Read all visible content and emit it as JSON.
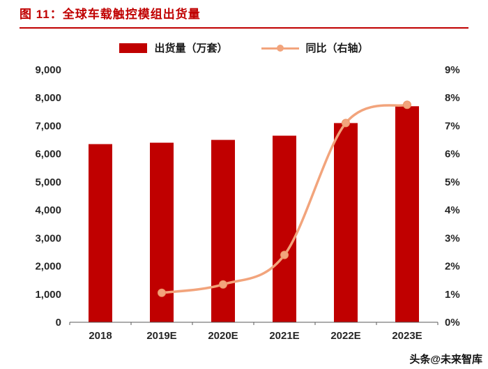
{
  "header": {
    "figure_label": "图 11："
  },
  "watermark": "头条@未来智库",
  "palette": {
    "bar": "#C00000",
    "line": "#F2A47C",
    "title": "#C00000",
    "axis_text": "#262626",
    "axis_line": "#595959"
  },
  "chart_data": {
    "type": "bar",
    "subtype": "bar+line-combo",
    "title": "全球车载触控模组出货量",
    "categories": [
      "2018",
      "2019E",
      "2020E",
      "2021E",
      "2022E",
      "2023E"
    ],
    "series": [
      {
        "name": "出货量（万套）",
        "type": "bar",
        "axis": "left",
        "color": "#C00000",
        "values": [
          6350,
          6400,
          6500,
          6650,
          7100,
          7700
        ]
      },
      {
        "name": "同比（右轴）",
        "type": "line",
        "axis": "right",
        "color": "#F2A47C",
        "values": [
          null,
          1.05,
          1.35,
          2.4,
          7.1,
          7.75
        ]
      }
    ],
    "left_axis": {
      "min": 0,
      "max": 9000,
      "tick_values": [
        0,
        1000,
        2000,
        3000,
        4000,
        5000,
        6000,
        7000,
        8000,
        9000
      ],
      "tick_labels": [
        "0",
        "1,000",
        "2,000",
        "3,000",
        "4,000",
        "5,000",
        "6,000",
        "7,000",
        "8,000",
        "9,000"
      ]
    },
    "right_axis": {
      "min": 0,
      "max": 9,
      "tick_values": [
        0,
        1,
        2,
        3,
        4,
        5,
        6,
        7,
        8,
        9
      ],
      "tick_labels": [
        "0%",
        "1%",
        "2%",
        "3%",
        "4%",
        "5%",
        "6%",
        "7%",
        "8%",
        "9%"
      ]
    },
    "grid": false,
    "legend_position": "top-center"
  }
}
